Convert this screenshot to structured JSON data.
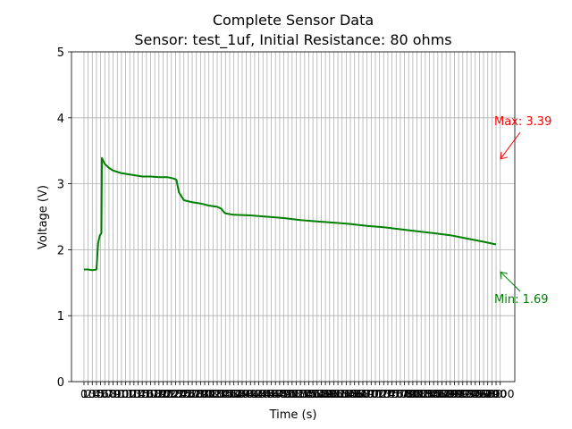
{
  "chart_data": {
    "type": "line",
    "title_line1": "Complete Sensor Data",
    "title_line2": "Sensor: test_1uf, Initial Resistance: 80 ohms",
    "xlabel": "Time (s)",
    "ylabel": "Voltage (V)",
    "xlim": [
      -30,
      1035
    ],
    "ylim": [
      0,
      5
    ],
    "yticks": [
      0,
      1,
      2,
      3,
      4,
      5
    ],
    "xticks": [
      0,
      10,
      20,
      30,
      40,
      50,
      60,
      70,
      80,
      90,
      100,
      110,
      120,
      130,
      140,
      150,
      160,
      170,
      180,
      190,
      200,
      210,
      220,
      230,
      240,
      250,
      260,
      270,
      280,
      290,
      300,
      310,
      320,
      330,
      340,
      350,
      360,
      370,
      380,
      390,
      400,
      410,
      420,
      430,
      440,
      450,
      460,
      470,
      480,
      490,
      500,
      510,
      520,
      530,
      540,
      550,
      560,
      570,
      580,
      590,
      600,
      610,
      620,
      630,
      640,
      650,
      660,
      670,
      680,
      690,
      700,
      710,
      720,
      730,
      740,
      750,
      760,
      770,
      780,
      790,
      800,
      810,
      820,
      830,
      840,
      850,
      860,
      870,
      880,
      890,
      900,
      910,
      920,
      930,
      940,
      950,
      960,
      970,
      980,
      990,
      1000
    ],
    "xtick_step": 20,
    "grid": true,
    "line_color": "#008000",
    "series": [
      {
        "x": [
          0,
          10,
          20,
          30,
          34,
          38,
          42,
          43,
          46,
          50,
          55,
          60,
          70,
          80,
          90,
          100,
          120,
          140,
          160,
          180,
          200,
          215,
          222,
          228,
          240,
          260,
          280,
          300,
          320,
          330,
          336,
          340,
          360,
          400,
          440,
          480,
          520,
          560,
          600,
          640,
          680,
          720,
          760,
          800,
          840,
          880,
          920,
          960,
          990
        ],
        "y": [
          1.7,
          1.7,
          1.69,
          1.7,
          2.1,
          2.22,
          2.25,
          3.39,
          3.35,
          3.3,
          3.27,
          3.24,
          3.2,
          3.18,
          3.16,
          3.15,
          3.13,
          3.11,
          3.11,
          3.1,
          3.1,
          3.08,
          3.06,
          2.87,
          2.75,
          2.72,
          2.7,
          2.67,
          2.65,
          2.62,
          2.57,
          2.55,
          2.53,
          2.52,
          2.5,
          2.48,
          2.45,
          2.43,
          2.41,
          2.39,
          2.36,
          2.34,
          2.31,
          2.28,
          2.25,
          2.22,
          2.17,
          2.12,
          2.08
        ]
      }
    ],
    "annotations": [
      {
        "text": "Max: 3.39",
        "color": "#ff0000"
      },
      {
        "text": "Min: 1.69",
        "color": "#008000"
      }
    ]
  }
}
